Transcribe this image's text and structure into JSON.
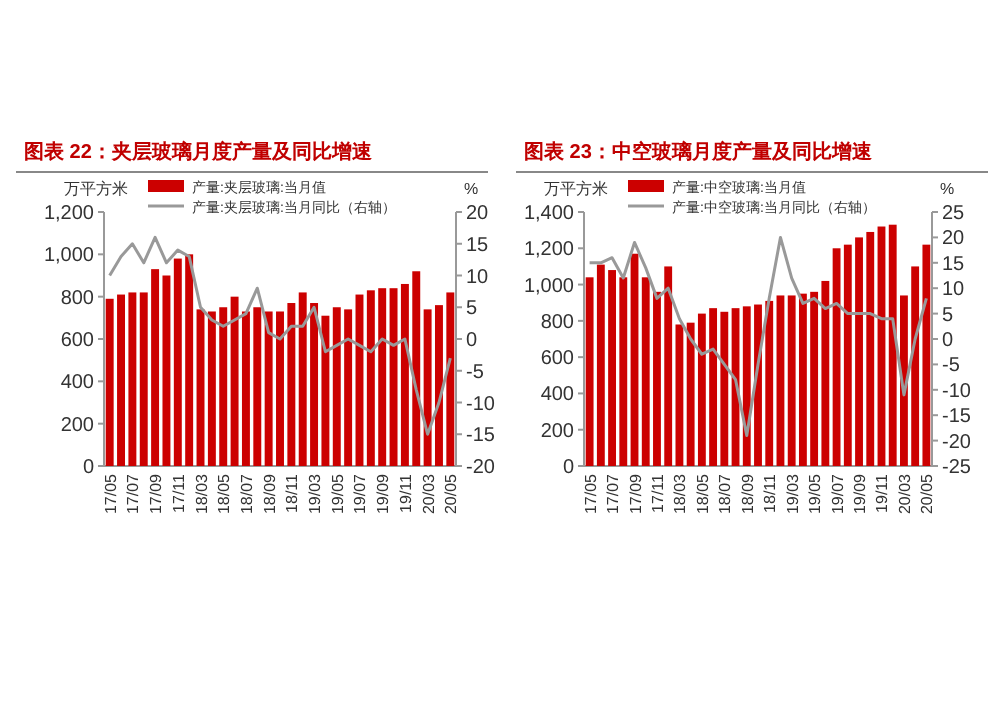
{
  "chart_data": [
    {
      "type": "bar",
      "title": "图表 22：夹层玻璃月度产量及同比增速",
      "ylabel": "万平方米",
      "y2label": "%",
      "legend": "top",
      "categories": [
        "17/05",
        null,
        "17/07",
        null,
        "17/09",
        null,
        "17/11",
        null,
        "18/03",
        null,
        "18/05",
        null,
        "18/07",
        null,
        "18/09",
        null,
        "18/11",
        null,
        "19/03",
        null,
        "19/05",
        null,
        "19/07",
        null,
        "19/09",
        null,
        "19/11",
        null,
        "20/03",
        null,
        "20/05"
      ],
      "series": [
        {
          "name": "产量:夹层玻璃:当月值",
          "color": "#cc0000",
          "values": [
            790,
            810,
            820,
            820,
            930,
            900,
            980,
            1000,
            740,
            730,
            750,
            800,
            730,
            750,
            730,
            730,
            770,
            820,
            770,
            710,
            750,
            740,
            810,
            830,
            840,
            840,
            860,
            920,
            740,
            760,
            820
          ]
        },
        {
          "name": "产量:夹层玻璃:当月同比（右轴）",
          "type": "line",
          "axis": "y2",
          "color": "#999999",
          "values": [
            10,
            13,
            15,
            12,
            16,
            12,
            14,
            13,
            5,
            3,
            2,
            3,
            4,
            8,
            1,
            0,
            2,
            2,
            5,
            -2,
            -1,
            0,
            -1,
            -2,
            0,
            -1,
            0,
            -8,
            -15,
            -10,
            -3
          ]
        }
      ],
      "ylim": [
        0,
        1200
      ],
      "yticks": [
        0,
        200,
        400,
        600,
        800,
        {
          "value": 1000,
          "label": "1,000"
        },
        {
          "value": 1200,
          "label": "1,200"
        }
      ],
      "y2lim": [
        -20,
        20
      ],
      "y2ticks": [
        -20,
        -15,
        -10,
        -5,
        0,
        5,
        10,
        15,
        20
      ]
    },
    {
      "type": "bar",
      "title": "图表 23：中空玻璃月度产量及同比增速",
      "ylabel": "万平方米",
      "y2label": "%",
      "legend": "top",
      "categories": [
        "17/05",
        null,
        "17/07",
        null,
        "17/09",
        null,
        "17/11",
        null,
        "18/03",
        null,
        "18/05",
        null,
        "18/07",
        null,
        "18/09",
        null,
        "18/11",
        null,
        "19/03",
        null,
        "19/05",
        null,
        "19/07",
        null,
        "19/09",
        null,
        "19/11",
        null,
        "20/03",
        null,
        "20/05"
      ],
      "series": [
        {
          "name": "产量:中空玻璃:当月值",
          "color": "#cc0000",
          "values": [
            1040,
            1110,
            1080,
            1040,
            1170,
            1040,
            960,
            1100,
            780,
            790,
            840,
            870,
            850,
            870,
            880,
            890,
            910,
            940,
            940,
            950,
            960,
            1020,
            1200,
            1220,
            1260,
            1290,
            1320,
            1330,
            940,
            1100,
            1220
          ]
        },
        {
          "name": "产量:中空玻璃:当月同比（右轴）",
          "type": "line",
          "axis": "y2",
          "color": "#999999",
          "values": [
            15,
            15,
            16,
            12,
            19,
            14,
            8,
            10,
            4,
            0,
            -3,
            -2,
            -5,
            -8,
            -19,
            -5,
            8,
            20,
            12,
            7,
            8,
            6,
            7,
            5,
            5,
            5,
            4,
            4,
            -11,
            0,
            8
          ]
        }
      ],
      "ylim": [
        0,
        1400
      ],
      "yticks": [
        0,
        200,
        400,
        600,
        800,
        {
          "value": 1000,
          "label": "1,000"
        },
        {
          "value": 1200,
          "label": "1,200"
        },
        {
          "value": 1400,
          "label": "1,400"
        }
      ],
      "y2lim": [
        -25,
        25
      ],
      "y2ticks": [
        -25,
        -20,
        -15,
        -10,
        -5,
        0,
        5,
        10,
        15,
        20,
        25
      ]
    }
  ]
}
